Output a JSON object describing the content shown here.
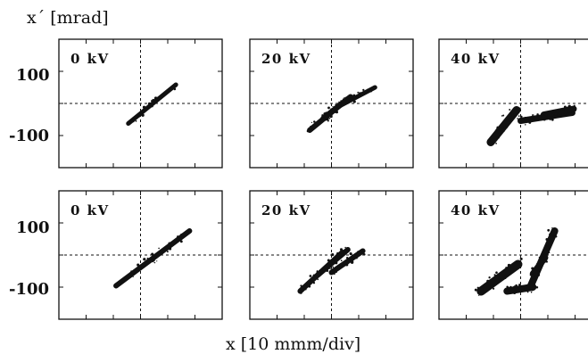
{
  "chart_data": {
    "type": "scatter",
    "layout": "2 rows x 3 columns of phase-space panels",
    "ylabel": "x´ [mrad]",
    "xlabel": "x [10 mmm/div]",
    "y_ticks": [
      "100",
      "-100"
    ],
    "grid": "dashed crosshair through origin, tick marks on frame",
    "ink_color": "#111111",
    "panels": [
      {
        "row": 1,
        "col": 1,
        "label": "0 kV",
        "series": [
          {
            "blobs": [
              {
                "x": [
                  -0.9,
                  2.6
                ],
                "y": [
                  -75,
                  70
                ],
                "width": 5
              }
            ]
          }
        ]
      },
      {
        "row": 1,
        "col": 2,
        "label": "20 kV",
        "series": [
          {
            "blobs": [
              {
                "x": [
                  -1.6,
                  0.8
                ],
                "y": [
                  -100,
                  0
                ],
                "width": 6
              },
              {
                "x": [
                  -0.6,
                  1.4
                ],
                "y": [
                  -55,
                  25
                ],
                "width": 6
              },
              {
                "x": [
                  0.4,
                  3.2
                ],
                "y": [
                  -15,
                  60
                ],
                "width": 5
              }
            ]
          }
        ]
      },
      {
        "row": 1,
        "col": 3,
        "label": "40 kV",
        "series": [
          {
            "blobs": [
              {
                "x": [
                  -2.2,
                  -0.3
                ],
                "y": [
                  -145,
                  -25
                ],
                "width": 9
              },
              {
                "x": [
                  0.0,
                  3.8
                ],
                "y": [
                  -65,
                  -35
                ],
                "width": 7
              },
              {
                "x": [
                  1.7,
                  3.9
                ],
                "y": [
                  -42,
                  -20
                ],
                "width": 7
              }
            ]
          }
        ]
      },
      {
        "row": 2,
        "col": 1,
        "label": "0 kV",
        "series": [
          {
            "blobs": [
              {
                "x": [
                  -1.8,
                  3.6
                ],
                "y": [
                  -115,
                  90
                ],
                "width": 6
              }
            ]
          }
        ]
      },
      {
        "row": 2,
        "col": 2,
        "label": "20 kV",
        "series": [
          {
            "blobs": [
              {
                "x": [
                  -2.3,
                  0.8
                ],
                "y": [
                  -135,
                  10
                ],
                "width": 6
              },
              {
                "x": [
                  -1.0,
                  1.2
                ],
                "y": [
                  -75,
                  20
                ],
                "width": 6
              },
              {
                "x": [
                  0.0,
                  2.3
                ],
                "y": [
                  -65,
                  15
                ],
                "width": 6
              }
            ]
          }
        ]
      },
      {
        "row": 2,
        "col": 3,
        "label": "40 kV",
        "series": [
          {
            "blobs": [
              {
                "x": [
                  -2.9,
                  -0.2
                ],
                "y": [
                  -135,
                  -35
                ],
                "width": 10
              },
              {
                "x": [
                  -1.0,
                  0.9
                ],
                "y": [
                  -135,
                  -120
                ],
                "width": 8
              },
              {
                "x": [
                  0.7,
                  2.5
                ],
                "y": [
                  -120,
                  90
                ],
                "width": 8
              },
              {
                "x": [
                  0.9,
                  1.8
                ],
                "y": [
                  -70,
                  -10
                ],
                "width": 7
              }
            ]
          }
        ]
      }
    ]
  }
}
